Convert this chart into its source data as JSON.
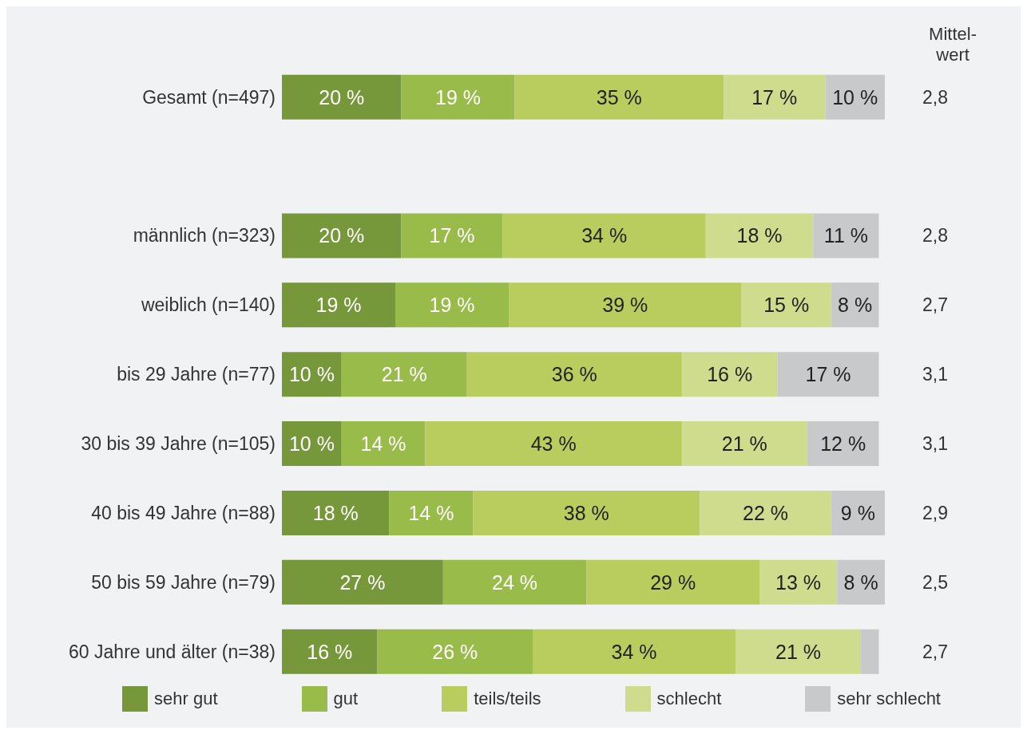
{
  "chart_data": {
    "type": "bar",
    "orientation": "horizontal",
    "stacked": true,
    "categories": [
      "Gesamt (n=497)",
      null,
      "männlich (n=323)",
      "weiblich (n=140)",
      "bis 29 Jahre (n=77)",
      "30 bis 39 Jahre (n=105)",
      "40 bis 49 Jahre (n=88)",
      "50 bis 59 Jahre (n=79)",
      "60 Jahre und älter (n=38)"
    ],
    "series": [
      {
        "name": "sehr gut",
        "color": "#76983a",
        "values": [
          20,
          null,
          20,
          19,
          10,
          10,
          18,
          27,
          16
        ],
        "value_labels": [
          "20 %",
          null,
          "20 %",
          "19 %",
          "10 %",
          "10 %",
          "18 %",
          "27 %",
          "16 %"
        ]
      },
      {
        "name": "gut",
        "color": "#98bb4a",
        "values": [
          19,
          null,
          17,
          19,
          21,
          14,
          14,
          24,
          26
        ],
        "value_labels": [
          "19 %",
          null,
          "17 %",
          "19 %",
          "21 %",
          "14 %",
          "14 %",
          "24 %",
          "26 %"
        ]
      },
      {
        "name": "teils/teils",
        "color": "#b8cd5e",
        "values": [
          35,
          null,
          34,
          39,
          36,
          43,
          38,
          29,
          34
        ],
        "value_labels": [
          "35 %",
          null,
          "34 %",
          "39 %",
          "36 %",
          "43 %",
          "38 %",
          "29 %",
          "34 %"
        ]
      },
      {
        "name": "schlecht",
        "color": "#cfdc8e",
        "values": [
          17,
          null,
          18,
          15,
          16,
          21,
          22,
          13,
          21
        ],
        "value_labels": [
          "17 %",
          null,
          "18 %",
          "15 %",
          "16 %",
          "21 %",
          "22 %",
          "13 %",
          "21 %"
        ]
      },
      {
        "name": "sehr schlecht",
        "color": "#c8c9cb",
        "values": [
          10,
          null,
          11,
          8,
          17,
          12,
          9,
          8,
          3
        ],
        "value_labels": [
          "10 %",
          null,
          "11 %",
          "8 %",
          "17 %",
          "12 %",
          "9 %",
          "8 %",
          null
        ]
      }
    ],
    "annotations": [
      "Mittel-\nwert",
      "2,8",
      "2,8",
      "2,7",
      "3,1",
      "3,1",
      "2,9",
      "2,5",
      "2,7"
    ],
    "legend": "bottom",
    "grid": false
  }
}
